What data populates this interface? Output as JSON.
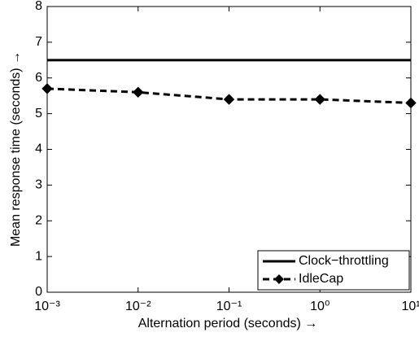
{
  "chart_data": {
    "type": "line",
    "xlabel": "Alternation period (seconds) →",
    "ylabel": "Mean response time (seconds) →",
    "x": [
      0.001,
      0.01,
      0.1,
      1,
      10
    ],
    "xscale": "log",
    "xlim": [
      0.001,
      10
    ],
    "xticks": [
      {
        "value": 0.001,
        "label": "10⁻³"
      },
      {
        "value": 0.01,
        "label": "10⁻²"
      },
      {
        "value": 0.1,
        "label": "10⁻¹"
      },
      {
        "value": 1,
        "label": "10⁰"
      },
      {
        "value": 10,
        "label": "10¹"
      }
    ],
    "ylim": [
      0,
      8
    ],
    "yticks": [
      0,
      1,
      2,
      3,
      4,
      5,
      6,
      7,
      8
    ],
    "grid": false,
    "legend": "lower right",
    "series": [
      {
        "name": "Clock−throttling",
        "color": "#000000",
        "style": "solid",
        "marker": "none",
        "values": [
          6.5,
          6.5,
          6.5,
          6.5,
          6.5
        ]
      },
      {
        "name": "IdleCap",
        "color": "#000000",
        "style": "dashed",
        "marker": "diamond",
        "values": [
          5.7,
          5.6,
          5.4,
          5.4,
          5.3
        ]
      }
    ]
  }
}
